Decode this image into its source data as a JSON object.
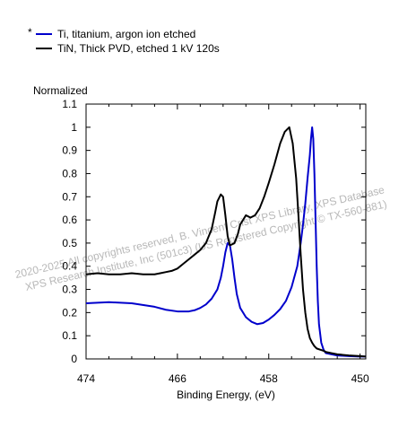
{
  "chart_data": {
    "type": "line",
    "xlabel": "Binding Energy, (eV)",
    "ylabel": "Normalized",
    "x_reversed": true,
    "xlim": [
      474,
      449.5
    ],
    "ylim": [
      0,
      1.1
    ],
    "x_ticks": [
      "474",
      "466",
      "458",
      "450"
    ],
    "x_tick_values": [
      474,
      466,
      458,
      450
    ],
    "y_ticks": [
      "0",
      "0.1",
      "0.2",
      "0.3",
      "0.4",
      "0.5",
      "0.6",
      "0.7",
      "0.8",
      "0.9",
      "1",
      "1.1"
    ],
    "y_tick_values": [
      0,
      0.1,
      0.2,
      0.3,
      0.4,
      0.5,
      0.6,
      0.7,
      0.8,
      0.9,
      1.0,
      1.1
    ],
    "legend_position": "top-left",
    "legend_marker": "*",
    "series": [
      {
        "name": "Ti, titanium, argon ion etched",
        "color": "#0000cc",
        "x": [
          474,
          472,
          470,
          468,
          467,
          466,
          465,
          464.5,
          464,
          463.5,
          463,
          462.5,
          462.2,
          462,
          461.8,
          461.6,
          461.4,
          461.2,
          461,
          460.8,
          460.5,
          460,
          459.5,
          459,
          458.5,
          458,
          457.5,
          457,
          456.5,
          456,
          455.5,
          455.2,
          455,
          454.8,
          454.6,
          454.4,
          454.3,
          454.2,
          454.1,
          454.0,
          453.9,
          453.8,
          453.7,
          453.6,
          453.4,
          453.2,
          453,
          452.5,
          452,
          451,
          450,
          449.5
        ],
        "y": [
          0.24,
          0.245,
          0.24,
          0.225,
          0.212,
          0.205,
          0.205,
          0.21,
          0.22,
          0.235,
          0.26,
          0.3,
          0.35,
          0.4,
          0.46,
          0.5,
          0.49,
          0.43,
          0.35,
          0.28,
          0.22,
          0.18,
          0.16,
          0.15,
          0.155,
          0.17,
          0.19,
          0.215,
          0.25,
          0.31,
          0.4,
          0.5,
          0.58,
          0.67,
          0.78,
          0.88,
          0.95,
          1.0,
          0.95,
          0.8,
          0.6,
          0.4,
          0.25,
          0.15,
          0.07,
          0.04,
          0.025,
          0.02,
          0.015,
          0.012,
          0.01,
          0.01
        ]
      },
      {
        "name": "TiN, Thick PVD, etched 1 kV 120s",
        "color": "#000000",
        "x": [
          474,
          473,
          472,
          471,
          470,
          469,
          468,
          467.5,
          467,
          466.5,
          466,
          465.5,
          465,
          464.5,
          464,
          463.5,
          463,
          462.7,
          462.5,
          462.2,
          462,
          461.8,
          461.6,
          461.4,
          461,
          460.7,
          460.5,
          460,
          459.6,
          459.2,
          458.8,
          458.4,
          458,
          457.5,
          457,
          456.6,
          456.2,
          455.9,
          455.6,
          455.4,
          455.2,
          455,
          454.8,
          454.6,
          454.4,
          454.2,
          454,
          453.8,
          453.5,
          453.2,
          453,
          452.5,
          452,
          451,
          450,
          449.5
        ],
        "y": [
          0.365,
          0.37,
          0.365,
          0.365,
          0.37,
          0.365,
          0.365,
          0.37,
          0.375,
          0.38,
          0.39,
          0.41,
          0.43,
          0.45,
          0.47,
          0.5,
          0.56,
          0.63,
          0.68,
          0.71,
          0.7,
          0.62,
          0.53,
          0.49,
          0.5,
          0.54,
          0.58,
          0.62,
          0.61,
          0.62,
          0.65,
          0.7,
          0.76,
          0.84,
          0.93,
          0.98,
          1.0,
          0.93,
          0.78,
          0.62,
          0.45,
          0.3,
          0.2,
          0.13,
          0.09,
          0.07,
          0.055,
          0.045,
          0.04,
          0.035,
          0.03,
          0.025,
          0.02,
          0.015,
          0.012,
          0.01
        ]
      }
    ]
  },
  "watermark": {
    "line1": "2020-2025   All copyrights reserved,   B. Vincent Crist   XPS Library, XPS Database",
    "line2": "XPS Research Institute, Inc (501c3)   (US Registered Copyright © TX-560-881)"
  }
}
